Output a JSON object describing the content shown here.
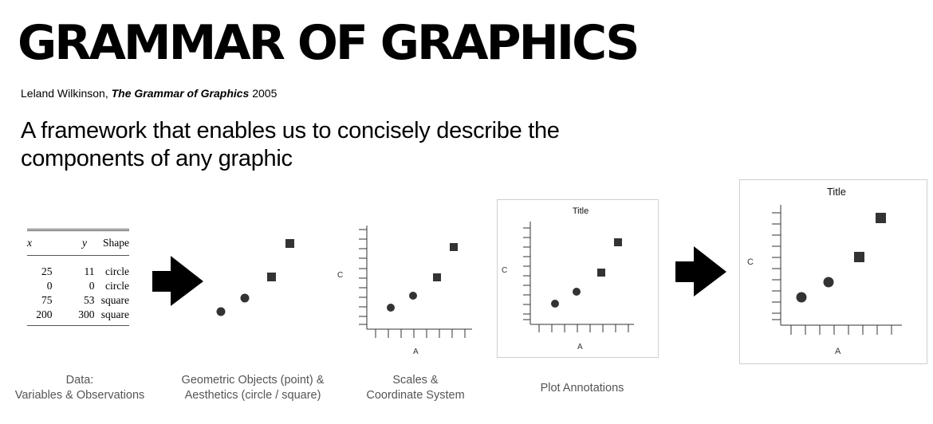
{
  "title": "GRAMMAR OF GRAPHICS",
  "citation": {
    "author": "Leland Wilkinson, ",
    "book": "The Grammar of Graphics",
    "year": " 2005"
  },
  "lead": "A framework that enables us to concisely describe the components of any graphic",
  "table": {
    "headers": [
      "x",
      "y",
      "Shape"
    ],
    "rows": [
      [
        "25",
        "11",
        "circle"
      ],
      [
        "0",
        "0",
        "circle"
      ],
      [
        "75",
        "53",
        "square"
      ],
      [
        "200",
        "300",
        "square"
      ]
    ]
  },
  "captions": {
    "data_line1": "Data:",
    "data_line2": "Variables & Observations",
    "geom_line1": "Geometric Objects (point) &",
    "geom_line2": "Aesthetics (circle / square)",
    "scales_line1": "Scales &",
    "scales_line2": "Coordinate System",
    "annotations": "Plot Annotations"
  },
  "plot": {
    "x_label": "A",
    "y_label": "C",
    "title": "Title"
  },
  "colors": {
    "mark": "#333333",
    "arrow": "#000000",
    "caption": "#555555",
    "frame": "#cfcfcf"
  },
  "icons": [
    "right-arrow-icon"
  ]
}
